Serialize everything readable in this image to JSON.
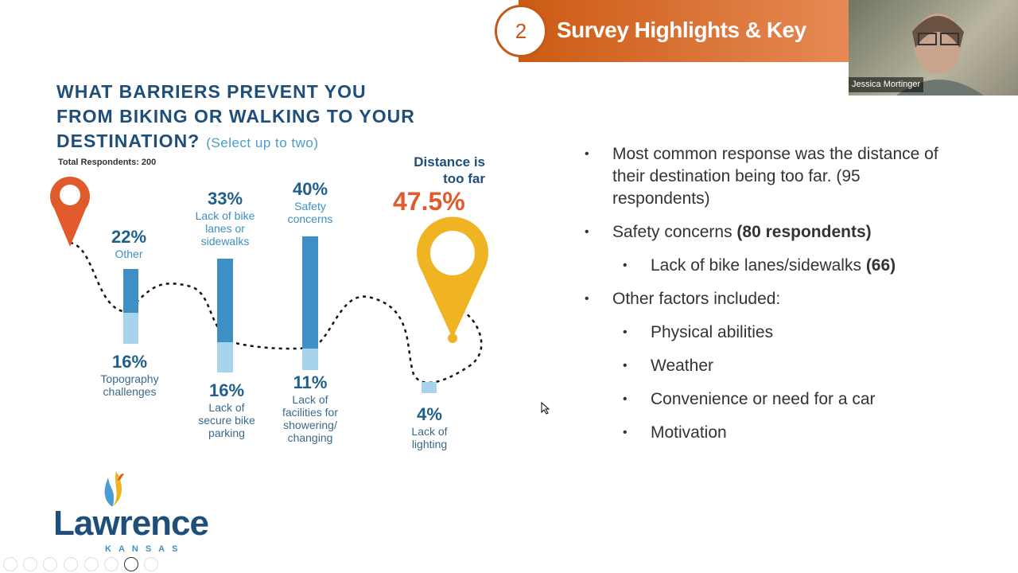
{
  "header": {
    "number": "2",
    "title": "Survey Highlights & Key"
  },
  "video": {
    "participant_name": "Jessica Mortinger"
  },
  "question": {
    "line1": "WHAT BARRIERS PREVENT YOU",
    "line2": "FROM BIKING OR WALKING TO YOUR",
    "line3": "DESTINATION?",
    "sub": "(Select up to two)",
    "total": "Total Respondents: 200"
  },
  "chart_data": {
    "type": "bar",
    "title": "What barriers prevent you from biking or walking to your destination?",
    "categories": [
      "Distance is too far",
      "Safety concerns",
      "Lack of bike lanes or sidewalks",
      "Other",
      "Topography challenges",
      "Lack of secure bike parking",
      "Lack of facilities for showering/changing",
      "Lack of lighting"
    ],
    "values": [
      47.5,
      40,
      33,
      22,
      16,
      16,
      11,
      4
    ],
    "unit": "%"
  },
  "items": {
    "distance": {
      "pct": "47.5%",
      "label1": "Distance is",
      "label2": "too far"
    },
    "safety": {
      "pct": "40%",
      "label1": "Safety",
      "label2": "concerns"
    },
    "lanes": {
      "pct": "33%",
      "label1": "Lack of bike",
      "label2": "lanes or",
      "label3": "sidewalks"
    },
    "other": {
      "pct": "22%",
      "label1": "Other"
    },
    "topo": {
      "pct": "16%",
      "label1": "Topography",
      "label2": "challenges"
    },
    "parking": {
      "pct": "16%",
      "label1": "Lack of",
      "label2": "secure bike",
      "label3": "parking"
    },
    "shower": {
      "pct": "11%",
      "label1": "Lack of",
      "label2": "facilities for",
      "label3": "showering/",
      "label4": "changing"
    },
    "lighting": {
      "pct": "4%",
      "label1": "Lack of",
      "label2": "lighting"
    }
  },
  "bullets": [
    {
      "text": "Most common response was the distance of their destination being too far. (95 respondents)"
    },
    {
      "text": "Safety concerns ",
      "bold": "(80 respondents)"
    },
    {
      "text": "Lack of bike lanes/sidewalks ",
      "bold": "(66)"
    },
    {
      "text": "Other factors included:"
    },
    {
      "text": "Physical abilities"
    },
    {
      "text": "Weather"
    },
    {
      "text": "Convenience or need for a car"
    },
    {
      "text": "Motivation"
    }
  ],
  "logo": {
    "name": "Lawrence",
    "state": "KANSAS"
  },
  "colors": {
    "accent": "#d0631f",
    "navy": "#1f4e79",
    "blue": "#3e8fc6",
    "light_blue": "#a8d3ec",
    "pin_red": "#e05a2b",
    "pin_yellow": "#f0b323"
  }
}
